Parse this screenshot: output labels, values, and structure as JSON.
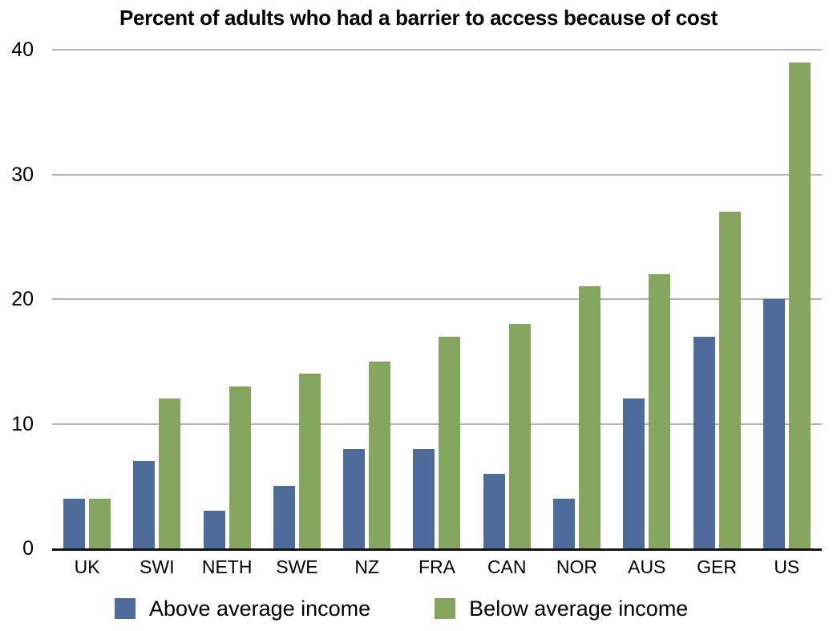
{
  "title": "Percent of adults who had a barrier to access because of cost",
  "colors": {
    "above_series": "#4D6C9C",
    "below_series": "#83A55D",
    "gridline": "#b3b3b3",
    "axis_line": "#141414",
    "text": "#000000",
    "background": "#ffffff"
  },
  "chart_data": {
    "type": "bar",
    "title": "Percent of adults who had a barrier to access because of cost",
    "categories": [
      "UK",
      "SWI",
      "NETH",
      "SWE",
      "NZ",
      "FRA",
      "CAN",
      "NOR",
      "AUS",
      "GER",
      "US"
    ],
    "series": [
      {
        "name": "Above average income",
        "color": "#4D6C9C",
        "values": [
          4,
          7,
          3,
          5,
          8,
          8,
          6,
          4,
          12,
          17,
          20
        ]
      },
      {
        "name": "Below average income",
        "color": "#83A55D",
        "values": [
          4,
          12,
          13,
          14,
          15,
          17,
          18,
          21,
          22,
          27,
          39
        ]
      }
    ],
    "xlabel": "",
    "ylabel": "",
    "ylim": [
      0,
      40
    ],
    "yticks": [
      0,
      10,
      20,
      30,
      40
    ],
    "grid": true,
    "legend_position": "bottom"
  },
  "legend": {
    "above_label": "Above average income",
    "below_label": "Below average income"
  }
}
